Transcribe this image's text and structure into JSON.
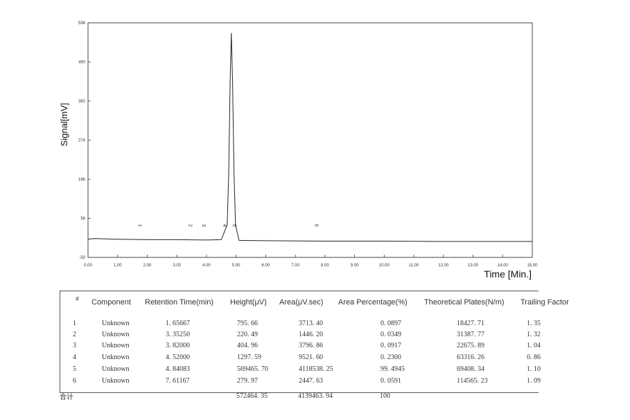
{
  "chart_data": {
    "type": "line",
    "xlabel": "Time [Min.]",
    "ylabel": "Signal[mV]",
    "xlim": [
      0,
      15
    ],
    "ylim": [
      -50,
      598
    ],
    "x_ticks": [
      "0.00",
      "1.00",
      "2.00",
      "3.00",
      "4.00",
      "5.00",
      "6.00",
      "7.00",
      "8.00",
      "9.00",
      "10.00",
      "11.00",
      "12.00",
      "13.00",
      "14.00",
      "15.00"
    ],
    "y_ticks": [
      "-50",
      "58",
      "166",
      "274",
      "382",
      "490",
      "598"
    ],
    "baseline_mv": 0,
    "series": [
      {
        "x": [
          0.0,
          0.2,
          1.0,
          2.0,
          3.0,
          4.0,
          4.5,
          4.7,
          4.75,
          4.8,
          4.84,
          4.88,
          4.93,
          4.98,
          5.1,
          6.0,
          8.0,
          10.0,
          12.0,
          14.0,
          15.0
        ],
        "y": [
          0,
          2,
          0,
          -1,
          -1,
          -2,
          -1,
          40,
          180,
          440,
          570,
          440,
          180,
          40,
          -3,
          -4,
          -5,
          -5,
          -6,
          -6,
          -6
        ]
      }
    ],
    "peak_markers": [
      {
        "label": "1",
        "x": 1.65667
      },
      {
        "label": "2",
        "x": 3.3525
      },
      {
        "label": "3",
        "x": 3.82
      },
      {
        "label": "4",
        "x": 4.52
      },
      {
        "label": "5",
        "x": 4.84083
      },
      {
        "label": "6",
        "x": 7.61167
      }
    ]
  },
  "table": {
    "headers": [
      "#",
      "Component",
      "Retention Time(min)",
      "Height(μV)",
      "Area(μV.sec)",
      "Area Percentage(%)",
      "Theoretical Plates(N/m)",
      "Trailing Factor"
    ],
    "rows": [
      [
        "1",
        "Unknown",
        "1. 65667",
        "795. 66",
        "3713. 40",
        "0. 0897",
        "18427. 71",
        "1. 35"
      ],
      [
        "2",
        "Unknown",
        "3. 35250",
        "220. 49",
        "1446. 20",
        "0. 0349",
        "31387. 77",
        "1. 32"
      ],
      [
        "3",
        "Unknown",
        "3. 82000",
        "404. 96",
        "3796. 86",
        "0. 0917",
        "22675. 89",
        "1. 04"
      ],
      [
        "4",
        "Unknown",
        "4. 52000",
        "1297. 59",
        "9521. 60",
        "0. 2300",
        "63316. 26",
        "0. 86"
      ],
      [
        "5",
        "Unknown",
        "4. 84083",
        "569465. 70",
        "4118538. 25",
        "99. 4945",
        "69408. 34",
        "1. 10"
      ],
      [
        "6",
        "Unknown",
        "7. 61167",
        "279. 97",
        "2447. 63",
        "0. 0591",
        "114565. 23",
        "1. 09"
      ]
    ],
    "total": {
      "label": "合计",
      "height": "572464. 35",
      "area": "4139463. 94",
      "percentage": "100"
    }
  }
}
